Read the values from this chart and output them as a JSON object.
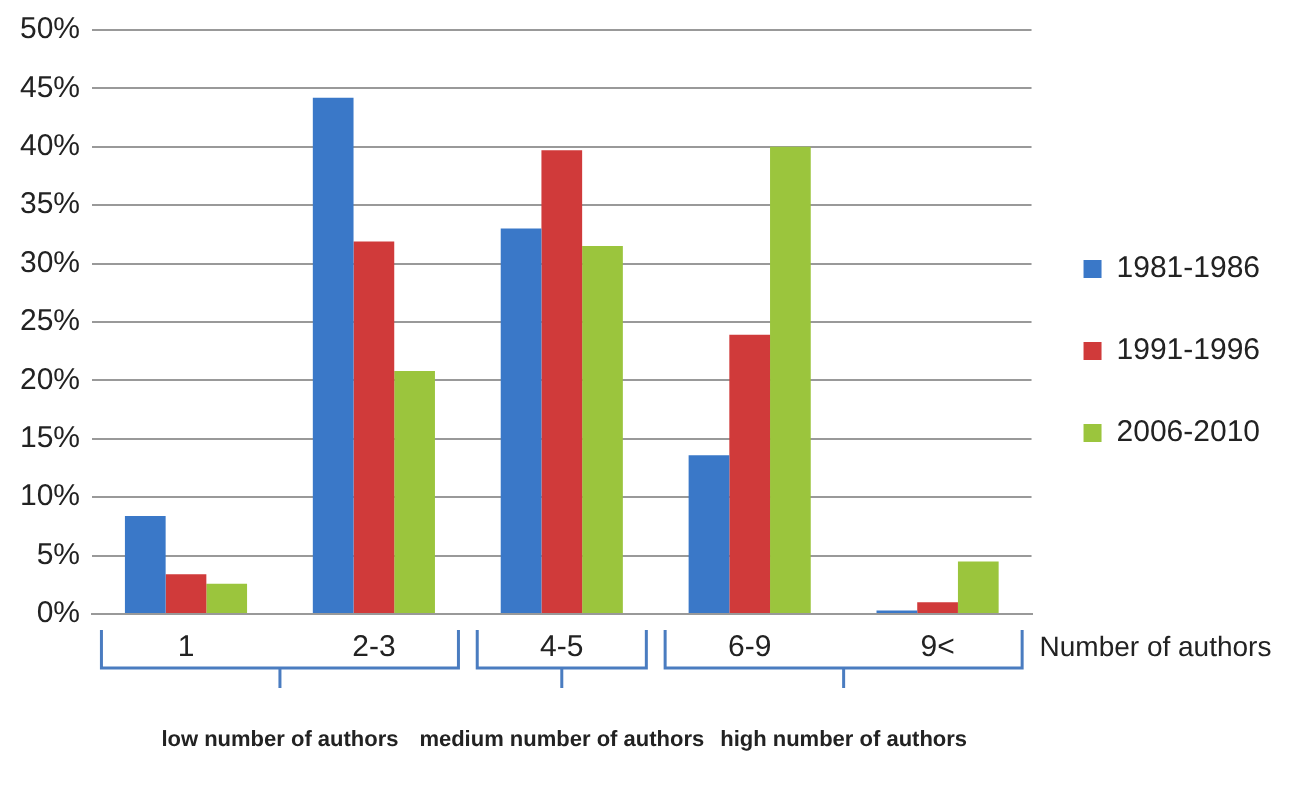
{
  "chart_data": {
    "type": "bar",
    "xlabel": "Number of authors",
    "categories": [
      "1",
      "2-3",
      "4-5",
      "6-9",
      "9<"
    ],
    "series": [
      {
        "name": "1981-1986",
        "color": "#3a78c8",
        "values": [
          8.4,
          44.2,
          33.0,
          13.6,
          0.3
        ]
      },
      {
        "name": "1991-1996",
        "color": "#d03a3a",
        "values": [
          3.4,
          31.9,
          39.7,
          23.9,
          1.0
        ]
      },
      {
        "name": "2006-2010",
        "color": "#9bc53d",
        "values": [
          2.6,
          20.8,
          31.5,
          40.0,
          4.5
        ]
      }
    ],
    "ylim": [
      0,
      50
    ],
    "yticks": [
      {
        "value": 0,
        "label": "0%"
      },
      {
        "value": 5,
        "label": "5%"
      },
      {
        "value": 10,
        "label": "10%"
      },
      {
        "value": 15,
        "label": "15%"
      },
      {
        "value": 20,
        "label": "20%"
      },
      {
        "value": 25,
        "label": "25%"
      },
      {
        "value": 30,
        "label": "30%"
      },
      {
        "value": 35,
        "label": "35%"
      },
      {
        "value": 40,
        "label": "40%"
      },
      {
        "value": 45,
        "label": "45%"
      },
      {
        "value": 50,
        "label": "50%"
      }
    ],
    "grid": "y",
    "legend": "right",
    "annotations": [
      "low number of authors",
      "medium number of authors",
      "high number of authors"
    ]
  }
}
